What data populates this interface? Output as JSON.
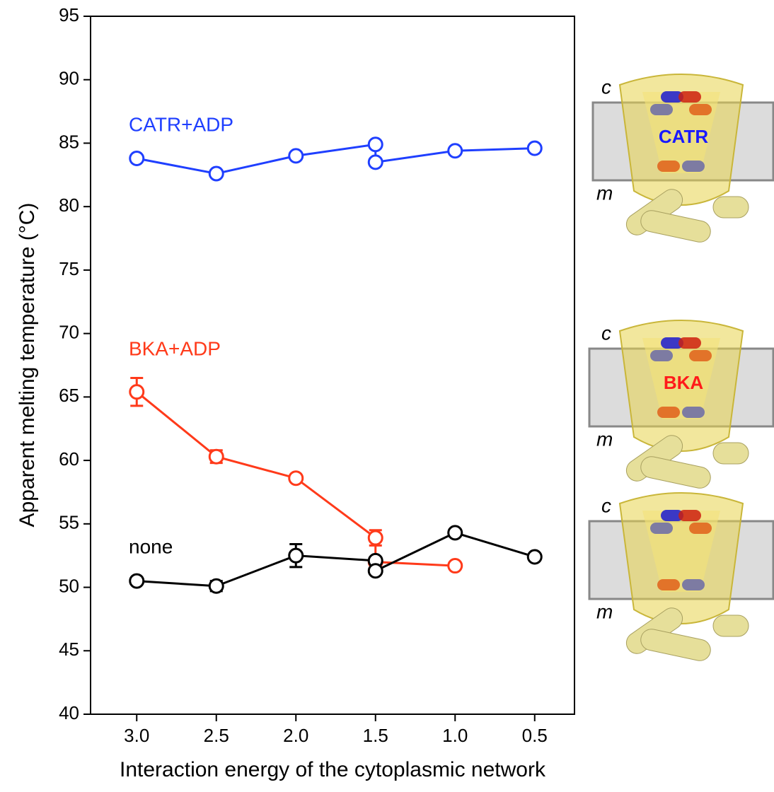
{
  "chart_data": {
    "type": "line",
    "xlabel": "Interaction energy of the cytoplasmic network",
    "ylabel": "Apparent melting temperature (°C)",
    "xlim": [
      3.29,
      0.25
    ],
    "ylim": [
      40,
      95
    ],
    "xticks": [
      {
        "value": 3,
        "label": "3.0"
      },
      2.5,
      {
        "value": 2,
        "label": "2.0"
      },
      1.5,
      {
        "value": 1,
        "label": "1.0"
      },
      0.5
    ],
    "yticks": [
      40,
      45,
      50,
      55,
      60,
      65,
      70,
      75,
      80,
      85,
      90,
      95
    ],
    "series": [
      {
        "name": "CATR+ADP",
        "color": "#1f3fff",
        "x": [
          3.0,
          2.5,
          2.0,
          1.5,
          1.5,
          1.0,
          0.5
        ],
        "values": [
          83.8,
          82.6,
          84.0,
          84.9,
          83.5,
          84.4,
          84.6
        ],
        "errors": [
          null,
          null,
          null,
          null,
          null,
          null,
          null
        ]
      },
      {
        "name": "BKA+ADP",
        "color": "#ff3a1a",
        "x": [
          3.0,
          2.5,
          2.0,
          1.5,
          1.5,
          1.0
        ],
        "values": [
          65.4,
          60.3,
          58.6,
          53.9,
          52.0,
          51.7
        ],
        "errors": [
          1.1,
          0.5,
          null,
          0.6,
          null,
          null
        ]
      },
      {
        "name": "none",
        "color": "#000000",
        "x": [
          3.0,
          2.5,
          2.0,
          1.5,
          1.5,
          1.0,
          0.5
        ],
        "values": [
          50.5,
          50.1,
          52.5,
          52.1,
          51.3,
          54.3,
          52.4
        ],
        "errors": [
          null,
          0.4,
          0.9,
          null,
          null,
          null,
          null
        ]
      }
    ],
    "insets": [
      {
        "top": "c",
        "bottom": "m",
        "drug": "CATR"
      },
      {
        "top": "c",
        "bottom": "m",
        "drug": "BKA"
      },
      {
        "top": "c",
        "bottom": "m"
      }
    ]
  }
}
